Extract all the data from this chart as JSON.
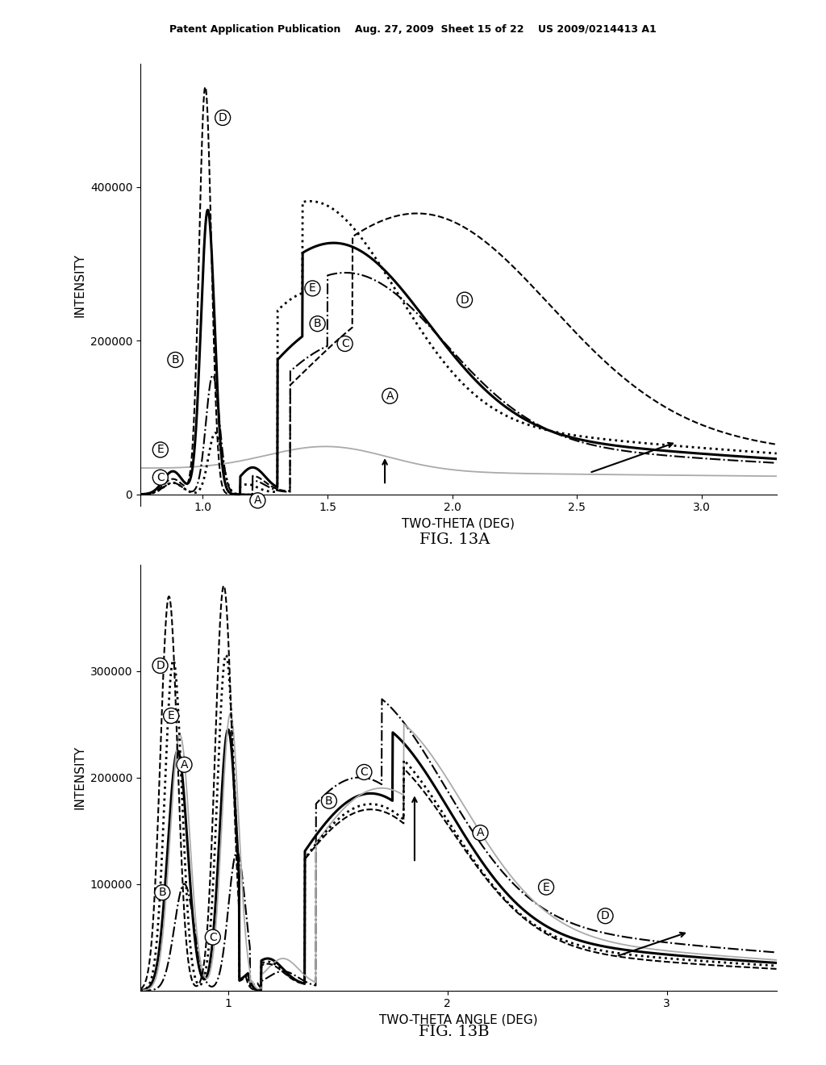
{
  "fig13a": {
    "title": "FIG. 13A",
    "xlabel": "TWO-THETA (DEG)",
    "ylabel": "INTENSITY",
    "xlim": [
      0.75,
      3.3
    ],
    "ylim": [
      -15000,
      560000
    ],
    "yticks": [
      0,
      200000,
      400000
    ],
    "xticks": [
      1.0,
      1.5,
      2.0,
      2.5,
      3.0
    ]
  },
  "fig13b": {
    "title": "FIG. 13B",
    "xlabel": "TWO-THETA ANGLE (DEG)",
    "ylabel": "INTENSITY",
    "xlim": [
      0.6,
      3.5
    ],
    "ylim": [
      0,
      400000
    ],
    "yticks": [
      100000,
      200000,
      300000
    ],
    "xticks": [
      1,
      2,
      3
    ]
  },
  "header_text": "Patent Application Publication    Aug. 27, 2009  Sheet 15 of 22    US 2009/0214413 A1",
  "background_color": "#ffffff"
}
